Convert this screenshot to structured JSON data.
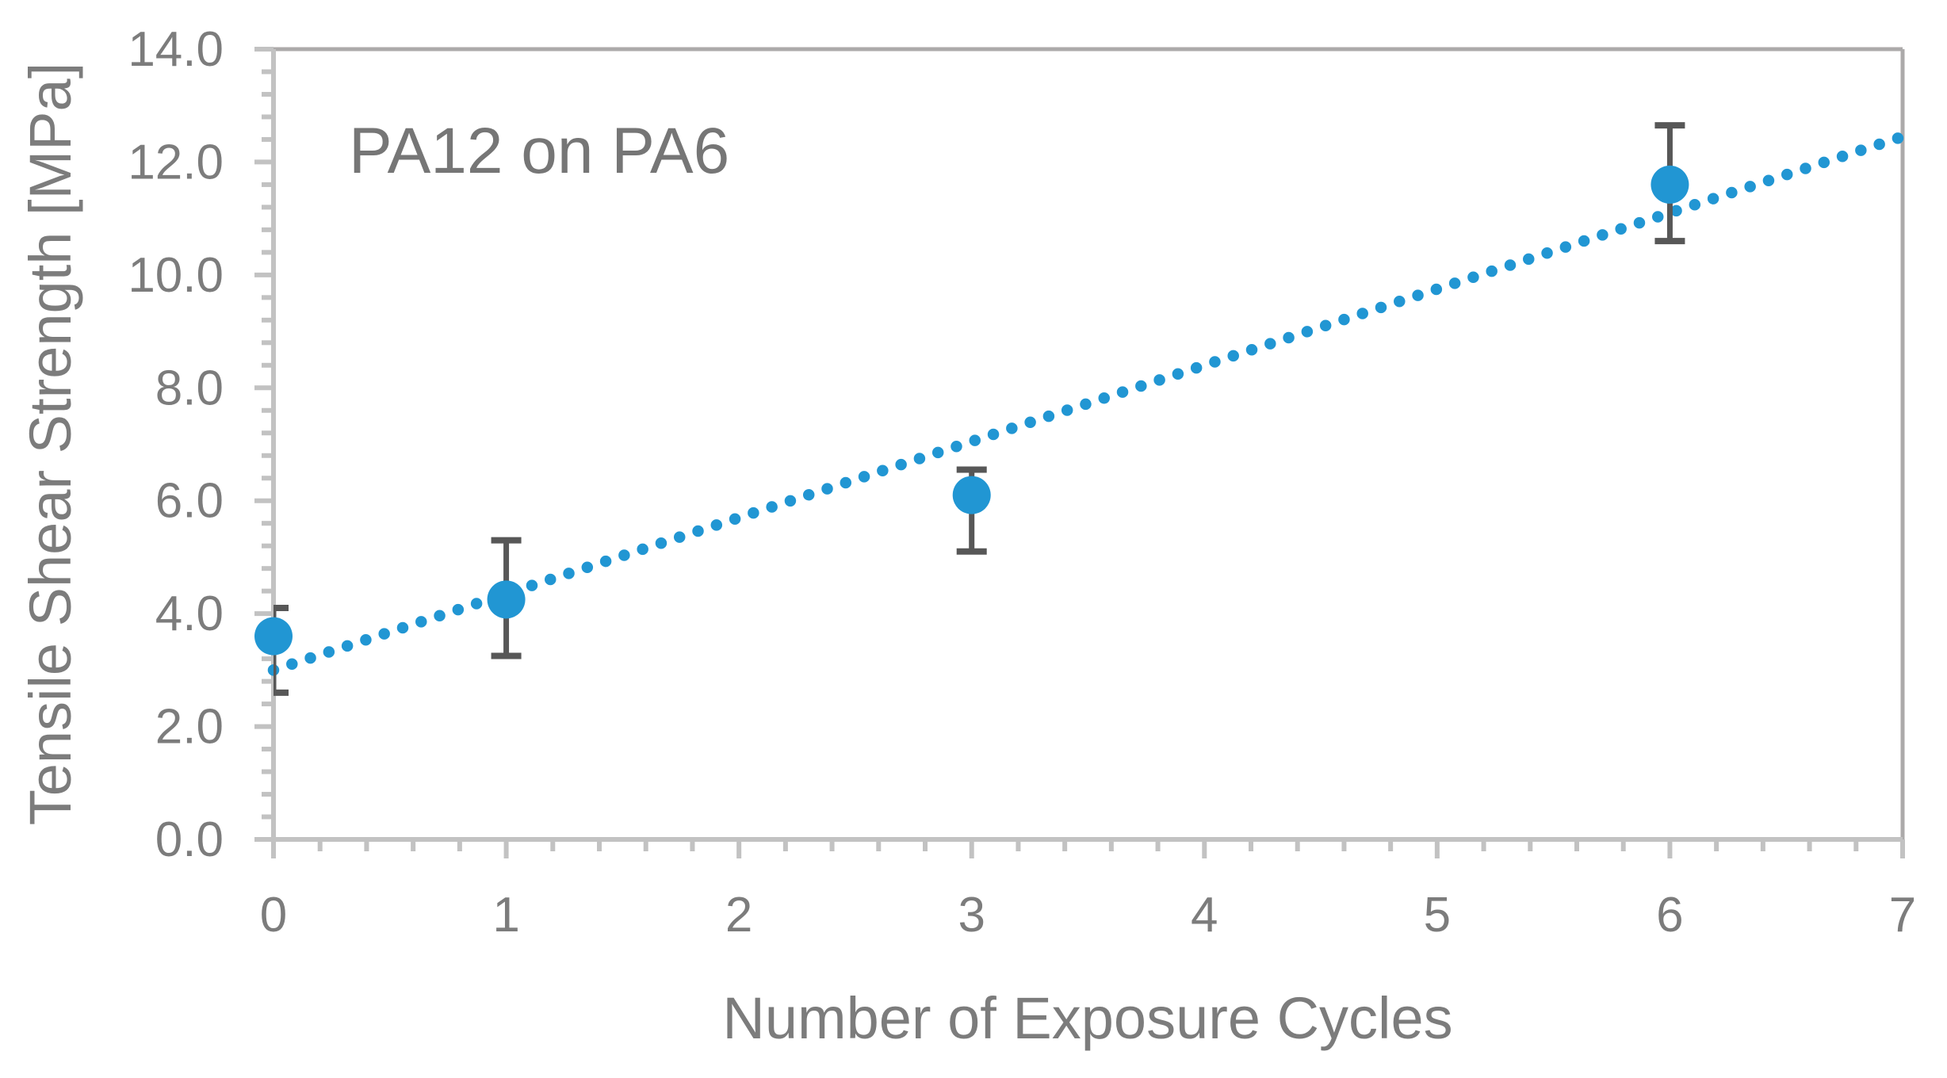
{
  "chart_data": {
    "type": "scatter",
    "annotation": "PA12 on PA6",
    "xlabel": "Number of Exposure Cycles",
    "ylabel": "Tensile Shear Strength [MPa]",
    "xlim": [
      0,
      7
    ],
    "ylim": [
      0,
      14
    ],
    "x_major_ticks": [
      0,
      1,
      2,
      3,
      4,
      5,
      6,
      7
    ],
    "x_tick_labels": [
      "0",
      "1",
      "2",
      "3",
      "4",
      "5",
      "6",
      "7"
    ],
    "x_minor_step": 0.2,
    "y_major_ticks": [
      0,
      2,
      4,
      6,
      8,
      10,
      12,
      14
    ],
    "y_tick_labels": [
      "0.0",
      "2.0",
      "4.0",
      "6.0",
      "8.0",
      "10.0",
      "12.0",
      "14.0"
    ],
    "y_minor_step": 0.4,
    "grid": false,
    "legend": false,
    "series": [
      {
        "name": "PA12 on PA6",
        "x": [
          0,
          1,
          3,
          6
        ],
        "y": [
          3.6,
          4.25,
          6.1,
          11.6
        ],
        "error_plus": [
          0.5,
          1.05,
          0.45,
          1.05
        ],
        "error_minus": [
          1.0,
          1.0,
          1.0,
          1.0
        ]
      }
    ],
    "trendline": {
      "style": "dotted",
      "start": {
        "x": 0,
        "y": 3.0
      },
      "end": {
        "x": 7,
        "y": 12.45
      }
    },
    "colors": {
      "series": "#2196D3",
      "error_bar": "#575757",
      "axis": "#C2C2C2",
      "border": "#ACAAAA",
      "text": "#7C7C7C"
    }
  }
}
